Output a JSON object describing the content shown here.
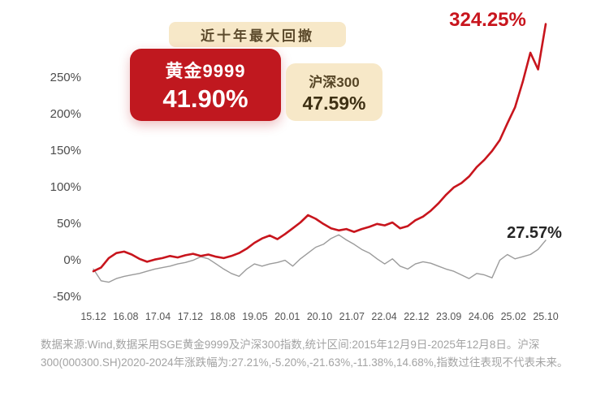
{
  "header": {
    "badge": "近十年最大回撤"
  },
  "cards": {
    "gold": {
      "title": "黄金9999",
      "value": "41.90%",
      "bg": "#c0181f",
      "text_color": "#ffffff"
    },
    "csi300": {
      "title": "沪深300",
      "value": "47.59%",
      "bg": "#f7e8c8",
      "text_color": "#3e3014"
    }
  },
  "annotations": {
    "gold_latest": "324.25%",
    "csi300_latest": "27.57%",
    "gold_color": "#c8151d",
    "csi300_color": "#262626"
  },
  "chart_data": {
    "type": "line",
    "title": "近十年最大回撤",
    "xlabel": "",
    "ylabel": "",
    "grid": false,
    "legend_position": "top-left-cards",
    "ylim": [
      -55,
      335
    ],
    "y_ticks": [
      {
        "value": 250,
        "label": "250%"
      },
      {
        "value": 200,
        "label": "200%"
      },
      {
        "value": 150,
        "label": "150%"
      },
      {
        "value": 100,
        "label": "100%"
      },
      {
        "value": 50,
        "label": "50%"
      },
      {
        "value": 0,
        "label": "0%"
      },
      {
        "value": -50,
        "label": "-50%"
      }
    ],
    "x_tick_labels": [
      "15.12",
      "16.08",
      "17.04",
      "17.12",
      "18.08",
      "19.05",
      "20.01",
      "20.10",
      "21.07",
      "22.04",
      "22.12",
      "23.09",
      "24.06",
      "25.02",
      "25.10"
    ],
    "series": [
      {
        "name": "黄金9999",
        "color": "#c8151d",
        "stroke_width": 2.6,
        "max_drawdown": "41.90%",
        "latest": 324.25,
        "values": [
          -15,
          -10,
          3,
          10,
          12,
          8,
          2,
          -2,
          1,
          3,
          6,
          4,
          7,
          9,
          6,
          8,
          5,
          3,
          6,
          10,
          16,
          24,
          30,
          34,
          29,
          36,
          44,
          52,
          62,
          57,
          50,
          44,
          41,
          43,
          39,
          43,
          46,
          50,
          48,
          52,
          44,
          47,
          55,
          60,
          68,
          78,
          90,
          100,
          106,
          115,
          128,
          138,
          150,
          165,
          188,
          210,
          245,
          285,
          262,
          324.25
        ]
      },
      {
        "name": "沪深300",
        "color": "#9b9b9b",
        "stroke_width": 1.4,
        "max_drawdown": "47.59%",
        "latest": 27.57,
        "values": [
          -12,
          -28,
          -30,
          -25,
          -22,
          -20,
          -18,
          -15,
          -12,
          -10,
          -8,
          -5,
          -3,
          0,
          5,
          2,
          -5,
          -12,
          -18,
          -22,
          -12,
          -5,
          -8,
          -5,
          -3,
          0,
          -8,
          2,
          10,
          18,
          22,
          30,
          35,
          28,
          22,
          15,
          10,
          2,
          -5,
          2,
          -8,
          -12,
          -5,
          -2,
          -4,
          -8,
          -12,
          -15,
          -20,
          -25,
          -18,
          -20,
          -24,
          0,
          8,
          2,
          5,
          8,
          15,
          27.57
        ]
      }
    ]
  },
  "footer": {
    "note": "数据来源:Wind,数据采用SGE黄金9999及沪深300指数,统计区间:2015年12月9日-2025年12月8日。沪深300(000300.SH)2020-2024年涨跌幅为:27.21%,-5.20%,-21.63%,-11.38%,14.68%,指数过往表现不代表未来。"
  }
}
